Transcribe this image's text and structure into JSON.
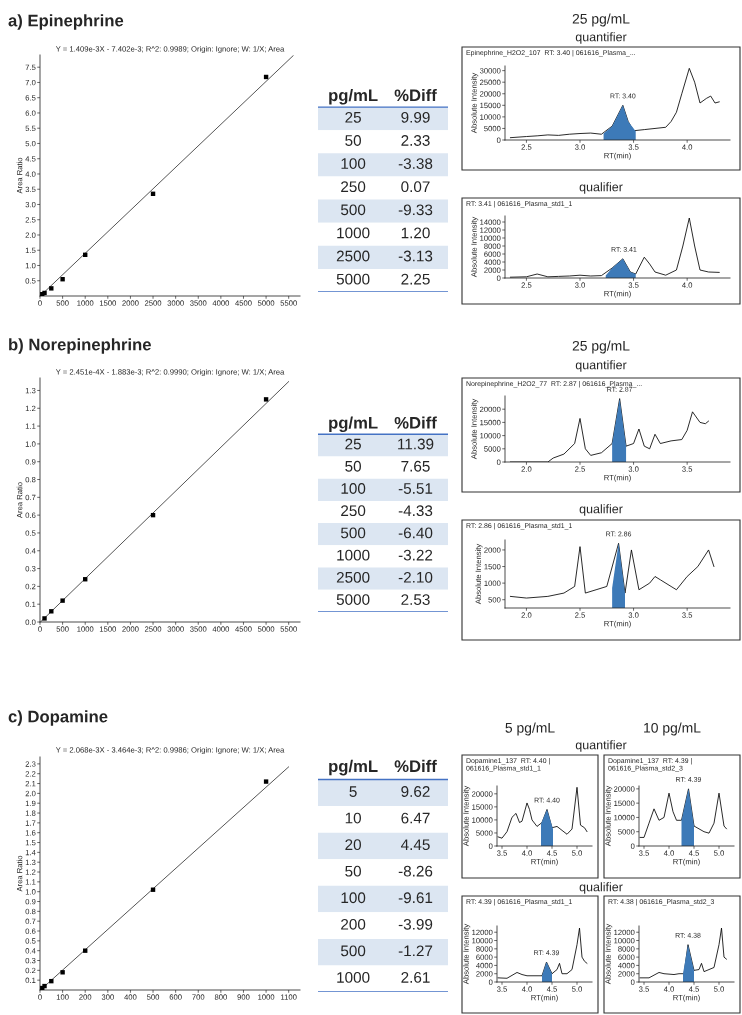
{
  "chart_data": [
    {
      "type": "scatter",
      "title": "a) Epinephrine",
      "subtitle": "Y = 1.409e-3X - 7.402e-3; R^2: 0.9989; Origin: Ignore; W: 1/X; Area",
      "ylabel": "Area Ratio",
      "xlim": [
        0,
        5750
      ],
      "ylim": [
        0,
        7.9
      ],
      "xticks": [
        0,
        500,
        1000,
        1500,
        2000,
        2500,
        3000,
        3500,
        4000,
        4500,
        5000,
        5500
      ],
      "yticks": [
        0.5,
        {
          "value": 1,
          "label": "1.0"
        },
        1.5,
        {
          "value": 2,
          "label": "2.0"
        },
        2.5,
        {
          "value": 3,
          "label": "3.0"
        },
        3.5,
        {
          "value": 4,
          "label": "4.0"
        },
        4.5,
        {
          "value": 5,
          "label": "5.0"
        },
        5.5,
        {
          "value": 6,
          "label": "6.0"
        },
        6.5,
        {
          "value": 7,
          "label": "7.0"
        },
        7.5
      ],
      "series": [
        {
          "type": "scatter",
          "marker": "square",
          "color": "#000000",
          "x": [
            50,
            100,
            250,
            500,
            1000,
            2500,
            5000
          ],
          "values": [
            0.06,
            0.1,
            0.25,
            0.55,
            1.35,
            3.35,
            7.18
          ]
        },
        {
          "type": "line",
          "color": "#333333",
          "x": [
            5,
            5600
          ],
          "values": [
            0.0,
            7.88
          ]
        }
      ]
    },
    {
      "type": "other",
      "xlabel": "pg/mL",
      "ylabel": "%Diff",
      "categories": [
        "25",
        "50",
        "100",
        "250",
        "500",
        "1000",
        "2500",
        "5000"
      ],
      "value_labels": [
        "9.99",
        "2.33",
        "-3.38",
        "0.07",
        "-9.33",
        "1.20",
        "-3.13",
        "2.25"
      ],
      "colors": [
        "#dce6f2",
        "#ffffff",
        "#dce6f2",
        "#ffffff",
        "#dce6f2",
        "#ffffff",
        "#dce6f2",
        "#ffffff"
      ]
    },
    {
      "type": "line",
      "title": "quantifier",
      "subtitle": "Epinephrine_H2O2_107  RT: 3.40 | 061616_Plasma_...",
      "xlabel": "RT(min)",
      "ylabel": "Absolute Intensity",
      "xlim": [
        2.3,
        4.4
      ],
      "ylim": [
        0,
        32000
      ],
      "xticks": [
        2.5,
        {
          "value": 3,
          "label": "3.0"
        },
        3.5,
        {
          "value": 4,
          "label": "4.0"
        }
      ],
      "yticks": [
        0,
        5000,
        10000,
        15000,
        20000,
        25000,
        30000
      ],
      "annotations": [
        "25 pg/mL",
        {
          "text": "RT: 3.40",
          "x": 3.4,
          "y": 15000
        }
      ],
      "series": [
        {
          "type": "line",
          "color": "#000000",
          "x": [
            2.35,
            2.5,
            2.6,
            2.7,
            2.8,
            2.9,
            3.0,
            3.1,
            3.2,
            3.3,
            3.4,
            3.45,
            3.5,
            3.6,
            3.7,
            3.8,
            3.85,
            3.9,
            3.95,
            4.02,
            4.07,
            4.12,
            4.18,
            4.22,
            4.26,
            4.3
          ],
          "values": [
            1000,
            1500,
            1800,
            2200,
            2000,
            2500,
            2800,
            3000,
            2500,
            6000,
            15000,
            8000,
            4000,
            4500,
            5000,
            5500,
            8000,
            12000,
            20000,
            31000,
            25000,
            16000,
            18000,
            19000,
            16000,
            16500
          ]
        },
        {
          "type": "area",
          "color": "#3d7ab8",
          "x": [
            3.22,
            3.3,
            3.4,
            3.45,
            3.52
          ],
          "values": [
            2800,
            6000,
            15000,
            8000,
            3800
          ]
        }
      ]
    },
    {
      "type": "line",
      "title": "qualifier",
      "subtitle": "RT: 3.41 | 061616_Plasma_std1_1",
      "xlabel": "RT(min)",
      "ylabel": "Absolute Intensity",
      "xlim": [
        2.3,
        4.4
      ],
      "ylim": [
        0,
        15500
      ],
      "xticks": [
        2.5,
        {
          "value": 3,
          "label": "3.0"
        },
        3.5,
        {
          "value": 4,
          "label": "4.0"
        }
      ],
      "yticks": [
        0,
        2000,
        4000,
        6000,
        8000,
        10000,
        12000,
        14000
      ],
      "annotations": [
        {
          "text": "RT: 3.41",
          "x": 3.41,
          "y": 4800
        }
      ],
      "series": [
        {
          "type": "line",
          "color": "#000000",
          "x": [
            2.35,
            2.5,
            2.6,
            2.7,
            2.8,
            2.9,
            3.0,
            3.1,
            3.2,
            3.3,
            3.4,
            3.47,
            3.52,
            3.6,
            3.65,
            3.7,
            3.8,
            3.9,
            3.96,
            4.02,
            4.07,
            4.12,
            4.2,
            4.3
          ],
          "values": [
            200,
            300,
            1000,
            300,
            400,
            500,
            700,
            500,
            600,
            2500,
            4800,
            1500,
            1000,
            5200,
            3500,
            1500,
            700,
            2000,
            8000,
            15000,
            8000,
            2000,
            1500,
            1400
          ]
        },
        {
          "type": "area",
          "color": "#3d7ab8",
          "x": [
            3.24,
            3.3,
            3.4,
            3.47,
            3.52
          ],
          "values": [
            600,
            2500,
            4800,
            1500,
            1000
          ]
        }
      ]
    },
    {
      "type": "scatter",
      "title": "b) Norepinephrine",
      "subtitle": "Y = 2.451e-4X - 1.883e-3; R^2: 0.9990; Origin: Ignore; W: 1/X; Area",
      "ylabel": "Area Ratio",
      "xlim": [
        0,
        5750
      ],
      "ylim": [
        0,
        1.37
      ],
      "xticks": [
        0,
        500,
        1000,
        1500,
        2000,
        2500,
        3000,
        3500,
        4000,
        4500,
        5000,
        5500
      ],
      "yticks": [
        {
          "value": 0,
          "label": "0.0"
        },
        0.1,
        0.2,
        0.3,
        0.4,
        0.5,
        0.6,
        0.7,
        0.8,
        0.9,
        {
          "value": 1,
          "label": "1.0"
        },
        1.1,
        1.2,
        1.3
      ],
      "series": [
        {
          "type": "scatter",
          "marker": "square",
          "color": "#000000",
          "x": [
            100,
            250,
            500,
            1000,
            2500,
            5000
          ],
          "values": [
            0.02,
            0.06,
            0.12,
            0.24,
            0.6,
            1.25
          ]
        },
        {
          "type": "line",
          "color": "#333333",
          "x": [
            10,
            5500
          ],
          "values": [
            0.0,
            1.35
          ]
        }
      ]
    },
    {
      "type": "other",
      "xlabel": "pg/mL",
      "ylabel": "%Diff",
      "categories": [
        "25",
        "50",
        "100",
        "250",
        "500",
        "1000",
        "2500",
        "5000"
      ],
      "value_labels": [
        "11.39",
        "7.65",
        "-5.51",
        "-4.33",
        "-6.40",
        "-3.22",
        "-2.10",
        "2.53"
      ],
      "colors": [
        "#dce6f2",
        "#ffffff",
        "#dce6f2",
        "#ffffff",
        "#dce6f2",
        "#ffffff",
        "#dce6f2",
        "#ffffff"
      ]
    },
    {
      "type": "line",
      "title": "quantifier",
      "subtitle": "Norepinephrine_H2O2_77  RT: 2.87 | 061616_Plasma_...",
      "xlabel": "RT(min)",
      "ylabel": "Absolute Intensity",
      "xlim": [
        1.8,
        3.9
      ],
      "ylim": [
        0,
        25000
      ],
      "xticks": [
        {
          "value": 2,
          "label": "2.0"
        },
        2.5,
        {
          "value": 3,
          "label": "3.0"
        },
        3.5
      ],
      "yticks": [
        0,
        5000,
        10000,
        15000,
        20000
      ],
      "annotations": [
        "25 pg/mL",
        {
          "text": "RT: 2.87",
          "x": 2.87,
          "y": 24000
        }
      ],
      "series": [
        {
          "type": "line",
          "color": "#000000",
          "x": [
            1.85,
            2.0,
            2.2,
            2.25,
            2.35,
            2.45,
            2.5,
            2.55,
            2.6,
            2.7,
            2.8,
            2.87,
            2.93,
            3.0,
            3.05,
            3.1,
            3.15,
            3.2,
            3.25,
            3.35,
            3.45,
            3.5,
            3.55,
            3.62,
            3.67,
            3.7
          ],
          "values": [
            0,
            0,
            0,
            1500,
            3000,
            7000,
            16500,
            5000,
            2500,
            3500,
            7000,
            24000,
            6000,
            7000,
            12500,
            6000,
            5000,
            10500,
            7000,
            8000,
            8500,
            12000,
            19000,
            15000,
            14500,
            15500
          ]
        },
        {
          "type": "area",
          "color": "#3d7ab8",
          "x": [
            2.8,
            2.87,
            2.93
          ],
          "values": [
            7000,
            24000,
            6000
          ]
        }
      ]
    },
    {
      "type": "line",
      "title": "qualifier",
      "subtitle": "RT: 2.86 | 061616_Plasma_std1_1",
      "xlabel": "RT(min)",
      "ylabel": "Absolute Intensity",
      "xlim": [
        1.8,
        3.9
      ],
      "ylim": [
        250,
        2300
      ],
      "xticks": [
        {
          "value": 2,
          "label": "2.0"
        },
        2.5,
        {
          "value": 3,
          "label": "3.0"
        },
        3.5
      ],
      "yticks": [
        500,
        1000,
        1500,
        2000
      ],
      "annotations": [
        {
          "text": "RT: 2.86",
          "x": 2.86,
          "y": 2200
        }
      ],
      "series": [
        {
          "type": "line",
          "color": "#000000",
          "x": [
            1.85,
            2.0,
            2.2,
            2.35,
            2.45,
            2.5,
            2.55,
            2.65,
            2.75,
            2.86,
            2.92,
            2.98,
            3.05,
            3.15,
            3.2,
            3.25,
            3.35,
            3.4,
            3.5,
            3.6,
            3.7,
            3.75
          ],
          "values": [
            600,
            550,
            600,
            700,
            900,
            2100,
            700,
            800,
            900,
            2200,
            700,
            2000,
            800,
            1000,
            1200,
            1100,
            900,
            800,
            1200,
            1500,
            2000,
            1500
          ]
        },
        {
          "type": "area",
          "color": "#3d7ab8",
          "x": [
            2.8,
            2.86,
            2.92
          ],
          "values": [
            850,
            2200,
            700
          ]
        }
      ]
    },
    {
      "type": "scatter",
      "title": "c) Dopamine",
      "subtitle": "Y = 2.068e-3X - 3.464e-3; R^2: 0.9986; Origin: Ignore; W: 1/X; Area",
      "ylabel": "Area Ratio",
      "xlim": [
        0,
        1150
      ],
      "ylim": [
        0,
        2.37
      ],
      "xticks": [
        0,
        100,
        200,
        300,
        400,
        500,
        600,
        700,
        800,
        900,
        1000,
        1100
      ],
      "yticks": [
        0.1,
        0.2,
        0.3,
        0.4,
        0.5,
        0.6,
        0.7,
        0.8,
        0.9,
        {
          "value": 1,
          "label": "1.0"
        },
        1.1,
        1.2,
        1.3,
        1.4,
        1.5,
        1.6,
        1.7,
        1.8,
        1.9,
        {
          "value": 2,
          "label": "2.0"
        },
        2.1,
        2.2,
        2.3
      ],
      "series": [
        {
          "type": "scatter",
          "marker": "square",
          "color": "#000000",
          "x": [
            10,
            20,
            50,
            100,
            200,
            500,
            1000
          ],
          "values": [
            0.02,
            0.04,
            0.09,
            0.18,
            0.4,
            1.02,
            2.12
          ]
        },
        {
          "type": "line",
          "color": "#333333",
          "x": [
            2,
            1100
          ],
          "values": [
            0.0,
            2.27
          ]
        }
      ]
    },
    {
      "type": "other",
      "xlabel": "pg/mL",
      "ylabel": "%Diff",
      "categories": [
        "5",
        "10",
        "20",
        "50",
        "100",
        "200",
        "500",
        "1000"
      ],
      "value_labels": [
        "9.62",
        "6.47",
        "4.45",
        "-8.26",
        "-9.61",
        "-3.99",
        "-1.27",
        "2.61"
      ],
      "colors": [
        "#dce6f2",
        "#ffffff",
        "#dce6f2",
        "#ffffff",
        "#dce6f2",
        "#ffffff",
        "#dce6f2",
        "#ffffff"
      ]
    },
    {
      "type": "line",
      "title": "quantifier",
      "subtitle": "Dopamine1_137  RT: 4.40 | 061616_Plasma_std1_1",
      "xlabel": "RT(min)",
      "ylabel": "Absolute Intensity",
      "xlim": [
        3.4,
        5.3
      ],
      "ylim": [
        0,
        23000
      ],
      "xticks": [
        3.5,
        {
          "value": 4,
          "label": "4.0"
        },
        4.5,
        {
          "value": 5,
          "label": "5.0"
        }
      ],
      "yticks": [
        0,
        5000,
        10000,
        15000,
        20000
      ],
      "annotations": [
        "5 pg/mL",
        {
          "text": "RT: 4.40",
          "x": 4.4,
          "y": 14000
        }
      ],
      "series": [
        {
          "type": "line",
          "color": "#000000",
          "x": [
            3.42,
            3.5,
            3.6,
            3.7,
            3.78,
            3.85,
            3.9,
            4.0,
            4.05,
            4.1,
            4.2,
            4.3,
            4.4,
            4.5,
            4.6,
            4.7,
            4.8,
            4.9,
            5.0,
            5.07,
            5.15,
            5.2
          ],
          "values": [
            3500,
            3000,
            5500,
            11000,
            12500,
            9000,
            9500,
            16500,
            14000,
            10000,
            7500,
            9000,
            14000,
            7000,
            7500,
            6000,
            4500,
            6500,
            22500,
            8000,
            7000,
            5500
          ]
        },
        {
          "type": "area",
          "color": "#3d7ab8",
          "x": [
            4.28,
            4.4,
            4.52
          ],
          "values": [
            8500,
            14000,
            6500
          ]
        }
      ]
    },
    {
      "type": "line",
      "subtitle": "Dopamine1_137  RT: 4.39 | 061616_Plasma_std2_3",
      "xlabel": "RT(min)",
      "ylabel": "Absolute Intensity",
      "xlim": [
        3.4,
        5.3
      ],
      "ylim": [
        0,
        21000
      ],
      "xticks": [
        3.5,
        {
          "value": 4,
          "label": "4.0"
        },
        4.5,
        {
          "value": 5,
          "label": "5.0"
        }
      ],
      "yticks": [
        0,
        5000,
        10000,
        15000,
        20000
      ],
      "annotations": [
        "10 pg/mL",
        {
          "text": "RT: 4.39",
          "x": 4.39,
          "y": 20000
        }
      ],
      "series": [
        {
          "type": "line",
          "color": "#000000",
          "x": [
            3.42,
            3.5,
            3.6,
            3.7,
            3.8,
            3.9,
            4.0,
            4.08,
            4.15,
            4.25,
            4.39,
            4.5,
            4.6,
            4.7,
            4.8,
            4.9,
            5.0,
            5.1,
            5.15
          ],
          "values": [
            3000,
            3000,
            8000,
            13000,
            9000,
            10000,
            18500,
            12000,
            9000,
            9000,
            20000,
            7000,
            6000,
            5000,
            4500,
            8000,
            18500,
            7000,
            6000
          ]
        },
        {
          "type": "area",
          "color": "#3d7ab8",
          "x": [
            4.25,
            4.39,
            4.5
          ],
          "values": [
            9000,
            20000,
            7000
          ]
        }
      ]
    },
    {
      "type": "line",
      "title": "qualifier",
      "subtitle": "RT: 4.39 | 061616_Plasma_std1_1",
      "xlabel": "RT(min)",
      "ylabel": "Absolute Intensity",
      "xlim": [
        3.4,
        5.3
      ],
      "ylim": [
        0,
        13500
      ],
      "xticks": [
        3.5,
        {
          "value": 4,
          "label": "4.0"
        },
        4.5,
        {
          "value": 5,
          "label": "5.0"
        }
      ],
      "yticks": [
        0,
        2000,
        4000,
        6000,
        8000,
        10000,
        12000
      ],
      "annotations": [
        {
          "text": "RT: 4.39",
          "x": 4.39,
          "y": 4800
        }
      ],
      "series": [
        {
          "type": "line",
          "color": "#000000",
          "x": [
            3.42,
            3.6,
            3.8,
            3.9,
            4.0,
            4.2,
            4.3,
            4.39,
            4.5,
            4.6,
            4.65,
            4.7,
            4.8,
            4.9,
            5.0,
            5.05,
            5.1,
            5.15,
            5.2
          ],
          "values": [
            1000,
            900,
            2300,
            1800,
            1500,
            1500,
            1500,
            4800,
            2000,
            3000,
            4500,
            2000,
            2000,
            3000,
            9000,
            13000,
            6000,
            5000,
            4500
          ]
        },
        {
          "type": "area",
          "color": "#3d7ab8",
          "x": [
            4.3,
            4.39,
            4.5
          ],
          "values": [
            1500,
            4800,
            2000
          ]
        }
      ]
    },
    {
      "type": "line",
      "subtitle": "RT: 4.38 | 061616_Plasma_std2_3",
      "xlabel": "RT(min)",
      "ylabel": "Absolute Intensity",
      "xlim": [
        3.4,
        5.3
      ],
      "ylim": [
        0,
        13500
      ],
      "xticks": [
        3.5,
        {
          "value": 4,
          "label": "4.0"
        },
        4.5,
        {
          "value": 5,
          "label": "5.0"
        }
      ],
      "yticks": [
        0,
        2000,
        4000,
        6000,
        8000,
        10000,
        12000
      ],
      "annotations": [
        {
          "text": "RT: 4.38",
          "x": 4.38,
          "y": 9000
        }
      ],
      "series": [
        {
          "type": "line",
          "color": "#000000",
          "x": [
            3.42,
            3.6,
            3.8,
            3.9,
            4.1,
            4.2,
            4.3,
            4.38,
            4.5,
            4.6,
            4.65,
            4.7,
            4.8,
            4.9,
            5.0,
            5.05,
            5.1,
            5.15
          ],
          "values": [
            1000,
            1000,
            2300,
            2000,
            1800,
            2000,
            2000,
            9000,
            2800,
            3000,
            4500,
            2500,
            3000,
            3500,
            9000,
            13000,
            6000,
            5500
          ]
        },
        {
          "type": "area",
          "color": "#3d7ab8",
          "x": [
            4.28,
            4.38,
            4.5
          ],
          "values": [
            2000,
            9000,
            2800
          ]
        }
      ]
    }
  ]
}
